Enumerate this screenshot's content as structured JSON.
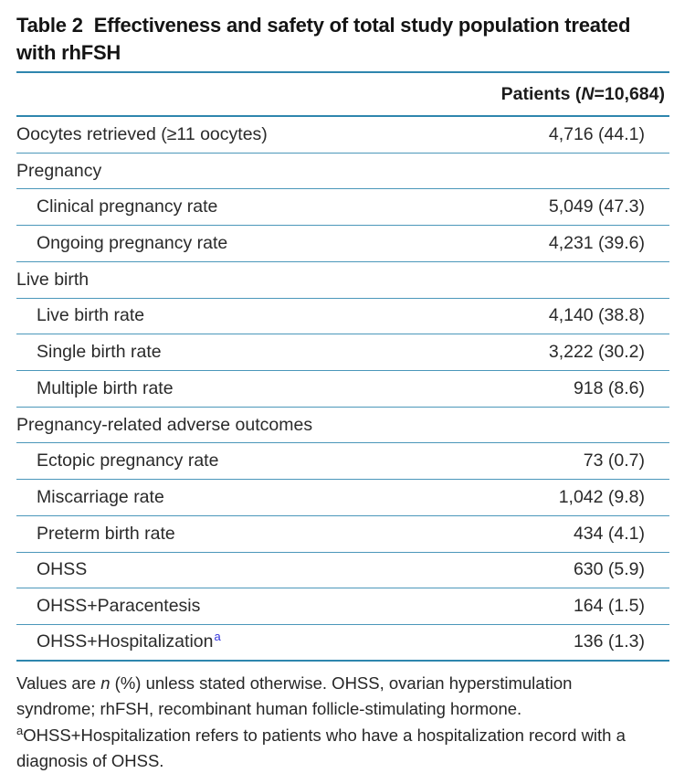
{
  "title": {
    "label": "Table 2",
    "text": "Effectiveness and safety of total study population treated with rhFSH"
  },
  "header": {
    "patients_prefix": "Patients (",
    "patients_n": "N",
    "patients_suffix": "=10,684)"
  },
  "table": {
    "rows": [
      {
        "label": "Oocytes retrieved (≥11 oocytes)",
        "value": "4,716 (44.1)",
        "indent": false,
        "section": false,
        "superscript": ""
      },
      {
        "label": "Pregnancy",
        "value": "",
        "indent": false,
        "section": true,
        "superscript": ""
      },
      {
        "label": "Clinical pregnancy rate",
        "value": "5,049 (47.3)",
        "indent": true,
        "section": false,
        "superscript": ""
      },
      {
        "label": "Ongoing pregnancy rate",
        "value": "4,231 (39.6)",
        "indent": true,
        "section": false,
        "superscript": ""
      },
      {
        "label": "Live birth",
        "value": "",
        "indent": false,
        "section": true,
        "superscript": ""
      },
      {
        "label": "Live birth rate",
        "value": "4,140 (38.8)",
        "indent": true,
        "section": false,
        "superscript": ""
      },
      {
        "label": "Single birth rate",
        "value": "3,222 (30.2)",
        "indent": true,
        "section": false,
        "superscript": ""
      },
      {
        "label": "Multiple birth rate",
        "value": "918 (8.6)",
        "indent": true,
        "section": false,
        "superscript": ""
      },
      {
        "label": "Pregnancy-related adverse outcomes",
        "value": "",
        "indent": false,
        "section": true,
        "superscript": ""
      },
      {
        "label": "Ectopic pregnancy rate",
        "value": "73 (0.7)",
        "indent": true,
        "section": false,
        "superscript": ""
      },
      {
        "label": "Miscarriage rate",
        "value": "1,042 (9.8)",
        "indent": true,
        "section": false,
        "superscript": ""
      },
      {
        "label": "Preterm birth rate",
        "value": "434 (4.1)",
        "indent": true,
        "section": false,
        "superscript": ""
      },
      {
        "label": "OHSS",
        "value": "630 (5.9)",
        "indent": true,
        "section": false,
        "superscript": ""
      },
      {
        "label": "OHSS+Paracentesis",
        "value": "164 (1.5)",
        "indent": true,
        "section": false,
        "superscript": ""
      },
      {
        "label": "OHSS+Hospitalization",
        "value": "136 (1.3)",
        "indent": true,
        "section": false,
        "superscript": "a"
      }
    ]
  },
  "footnotes": {
    "line1_before": "Values are ",
    "line1_italic": "n",
    "line1_after": " (%) unless stated otherwise. OHSS, ovarian hyperstimulation syndrome; rhFSH, recombinant human follicle-stimulating hormone.",
    "note_a_sup": "a",
    "note_a_text": "OHSS+Hospitalization refers to patients who have a hospitalization record with a diagnosis of OHSS."
  },
  "colors": {
    "rule_major": "#2e86ae",
    "rule_row": "#4b97ba",
    "superscript_link": "#3232dc",
    "text": "#262626",
    "title": "#141414"
  }
}
